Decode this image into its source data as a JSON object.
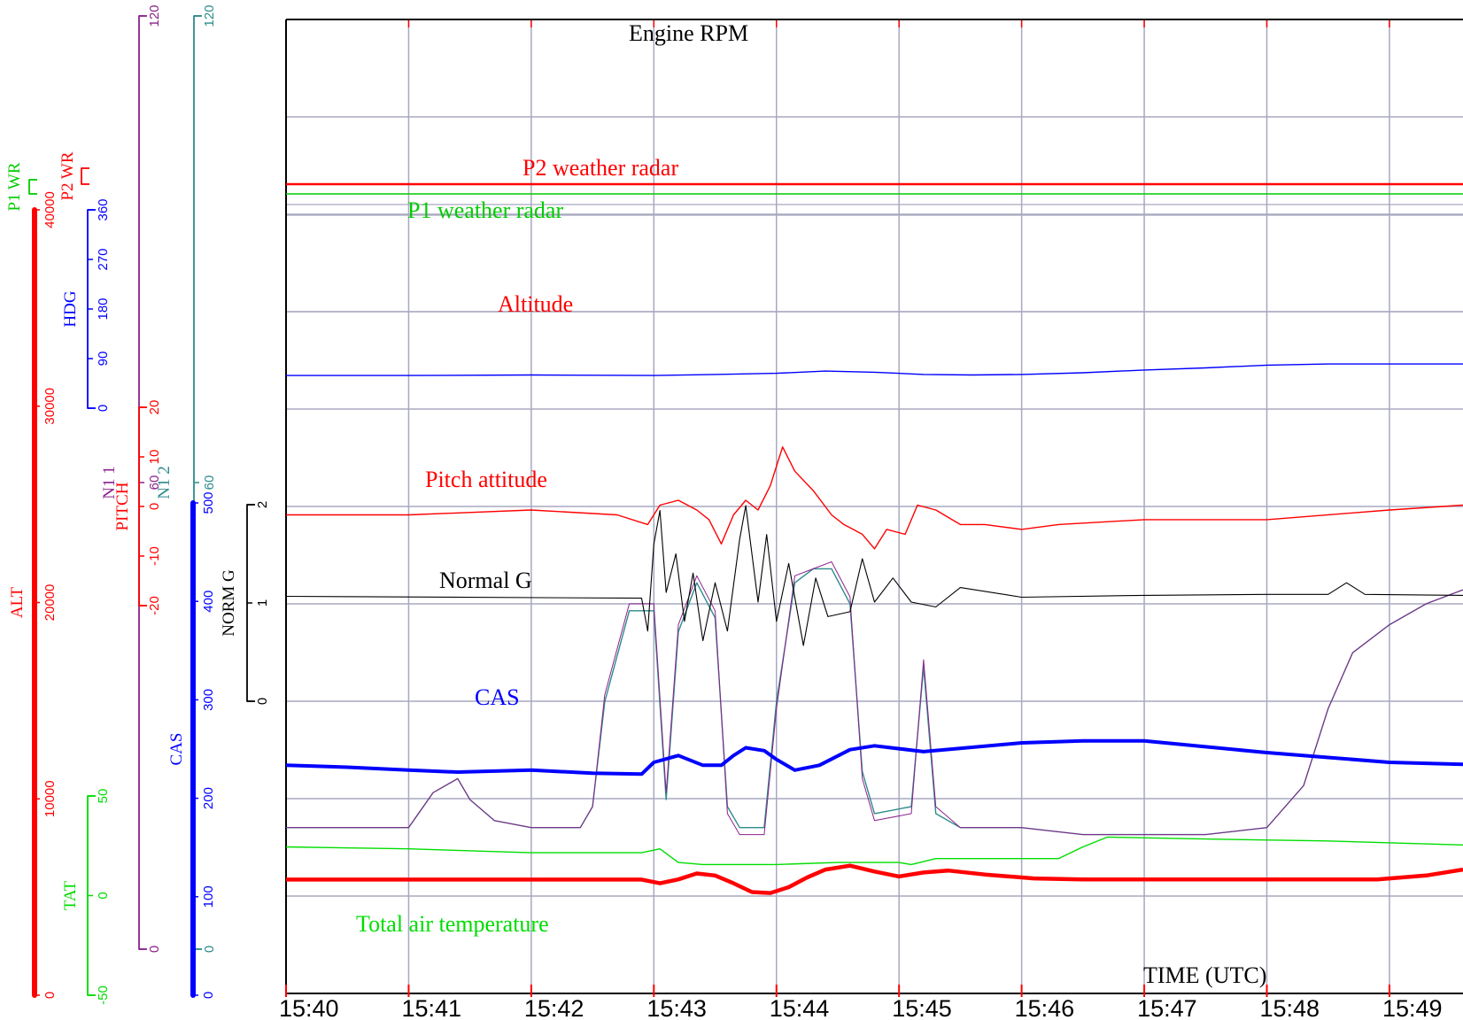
{
  "chart_data": {
    "type": "line",
    "xlabel": "TIME (UTC)",
    "x_ticks": [
      "15:40",
      "15:41",
      "15:42",
      "15:43",
      "15:44",
      "15:45",
      "15:46",
      "15:47",
      "15:48",
      "15:49"
    ],
    "xlim": [
      "15:40",
      "15:49:36"
    ],
    "grid": true,
    "series": [
      {
        "key": "n12",
        "name": "Engine RPM",
        "axis_label": "N1 2",
        "color": "#2e8b8b",
        "width": 1.4,
        "ylim": [
          0,
          120
        ],
        "y_ticks": [
          "0",
          "60",
          "120"
        ],
        "band": [
          18,
          1072,
          121,
          1069
        ],
        "points": [
          [
            0,
            103
          ],
          [
            0.5,
            103
          ],
          [
            1,
            103
          ],
          [
            1.2,
            98
          ],
          [
            1.4,
            96
          ],
          [
            1.5,
            99
          ],
          [
            1.7,
            102
          ],
          [
            2,
            103
          ],
          [
            2.4,
            103
          ],
          [
            2.5,
            100
          ],
          [
            2.6,
            85
          ],
          [
            2.8,
            72
          ],
          [
            3.0,
            72
          ],
          [
            3.1,
            99
          ],
          [
            3.2,
            75
          ],
          [
            3.35,
            68
          ],
          [
            3.5,
            73
          ],
          [
            3.6,
            100
          ],
          [
            3.7,
            103
          ],
          [
            3.9,
            103
          ],
          [
            4.0,
            85
          ],
          [
            4.15,
            68
          ],
          [
            4.3,
            66
          ],
          [
            4.45,
            66
          ],
          [
            4.6,
            71
          ],
          [
            4.7,
            95
          ],
          [
            4.8,
            101
          ],
          [
            5.1,
            100
          ],
          [
            5.2,
            80
          ],
          [
            5.3,
            101
          ],
          [
            5.5,
            103
          ],
          [
            6,
            103
          ],
          [
            6.5,
            104
          ],
          [
            7,
            104
          ],
          [
            7.5,
            104
          ],
          [
            8.0,
            103
          ],
          [
            8.3,
            97
          ],
          [
            8.5,
            86
          ],
          [
            8.7,
            78
          ],
          [
            9.0,
            74
          ],
          [
            9.3,
            71
          ],
          [
            9.6,
            69
          ]
        ]
      },
      {
        "key": "n11",
        "name": "",
        "axis_label": "N1 1",
        "color": "#8b228b",
        "width": 1.0,
        "ylim": [
          0,
          120
        ],
        "y_ticks": [
          "0",
          "60",
          "120"
        ],
        "band": [
          18,
          1072,
          121,
          1069
        ],
        "points": [
          [
            0,
            103
          ],
          [
            0.5,
            103
          ],
          [
            1,
            103
          ],
          [
            1.2,
            98
          ],
          [
            1.4,
            96
          ],
          [
            1.5,
            99
          ],
          [
            1.7,
            102
          ],
          [
            2,
            103
          ],
          [
            2.4,
            103
          ],
          [
            2.5,
            100
          ],
          [
            2.6,
            84
          ],
          [
            2.8,
            71
          ],
          [
            3.0,
            71
          ],
          [
            3.1,
            98
          ],
          [
            3.2,
            74
          ],
          [
            3.35,
            67
          ],
          [
            3.5,
            72
          ],
          [
            3.6,
            101
          ],
          [
            3.7,
            104
          ],
          [
            3.9,
            104
          ],
          [
            4.0,
            86
          ],
          [
            4.15,
            67
          ],
          [
            4.3,
            66
          ],
          [
            4.45,
            65
          ],
          [
            4.6,
            70
          ],
          [
            4.7,
            96
          ],
          [
            4.8,
            102
          ],
          [
            5.1,
            101
          ],
          [
            5.2,
            79
          ],
          [
            5.3,
            100
          ],
          [
            5.5,
            103
          ],
          [
            6,
            103
          ],
          [
            6.5,
            104
          ],
          [
            7,
            104
          ],
          [
            7.5,
            104
          ],
          [
            8.0,
            103
          ],
          [
            8.3,
            97
          ],
          [
            8.5,
            86
          ],
          [
            8.7,
            78
          ],
          [
            9.0,
            74
          ],
          [
            9.3,
            71
          ],
          [
            9.6,
            69
          ]
        ]
      },
      {
        "key": "p2wr",
        "name": "P2 weather radar",
        "axis_label": "P2 WR",
        "color": "#ff0000",
        "width": 2.4,
        "ylim": [
          0,
          1
        ],
        "y_ticks": [],
        "band": [
          190,
          208,
          196,
          208
        ],
        "points": [
          [
            0,
            1
          ],
          [
            9.6,
            1
          ]
        ]
      },
      {
        "key": "p1wr",
        "name": "P1 weather radar",
        "axis_label": "P1 WR",
        "color": "#00cc00",
        "width": 1.6,
        "ylim": [
          0,
          1
        ],
        "y_ticks": [],
        "band": [
          203,
          219,
          209,
          219
        ],
        "points": [
          [
            0,
            1
          ],
          [
            9.6,
            1
          ]
        ]
      },
      {
        "key": "hdg",
        "name": "",
        "axis_label": "HDG",
        "color": "#0000ff",
        "width": 1.4,
        "ylim": [
          0,
          360
        ],
        "y_ticks": [
          "0",
          "90",
          "180",
          "270",
          "360"
        ],
        "band": [
          237,
          461,
          236,
          458
        ],
        "points": [
          [
            0,
            305
          ],
          [
            1,
            305
          ],
          [
            2,
            304
          ],
          [
            3,
            305
          ],
          [
            3.5,
            303
          ],
          [
            4,
            301
          ],
          [
            4.4,
            297
          ],
          [
            4.8,
            299
          ],
          [
            5.2,
            303
          ],
          [
            5.6,
            304
          ],
          [
            6,
            303
          ],
          [
            6.5,
            300
          ],
          [
            7,
            295
          ],
          [
            7.5,
            291
          ],
          [
            8,
            286
          ],
          [
            8.5,
            284
          ],
          [
            9,
            284
          ],
          [
            9.6,
            284
          ]
        ]
      },
      {
        "key": "alt",
        "name": "Altitude",
        "axis_label": "ALT",
        "color": "#ff0000",
        "width": 4.5,
        "ylim": [
          0,
          40000
        ],
        "y_ticks": [
          "0",
          "10000",
          "20000",
          "30000",
          "40000"
        ],
        "band": [
          237,
          1124,
          236,
          1119
        ],
        "points": [
          [
            0,
            34310
          ],
          [
            1,
            34310
          ],
          [
            2,
            34310
          ],
          [
            2.9,
            34310
          ],
          [
            3.05,
            34500
          ],
          [
            3.2,
            34300
          ],
          [
            3.35,
            34000
          ],
          [
            3.5,
            34100
          ],
          [
            3.65,
            34500
          ],
          [
            3.8,
            34950
          ],
          [
            3.95,
            35000
          ],
          [
            4.1,
            34700
          ],
          [
            4.25,
            34200
          ],
          [
            4.4,
            33800
          ],
          [
            4.6,
            33600
          ],
          [
            4.8,
            33900
          ],
          [
            5.0,
            34150
          ],
          [
            5.2,
            33950
          ],
          [
            5.4,
            33850
          ],
          [
            5.7,
            34050
          ],
          [
            6.1,
            34250
          ],
          [
            6.5,
            34300
          ],
          [
            7,
            34300
          ],
          [
            8,
            34300
          ],
          [
            8.9,
            34300
          ],
          [
            9.3,
            34100
          ],
          [
            9.6,
            33800
          ]
        ]
      },
      {
        "key": "pitch",
        "name": "Pitch attitude",
        "axis_label": "PITCH",
        "color": "#ff0000",
        "width": 1.4,
        "ylim": [
          -20,
          20
        ],
        "y_ticks": [
          "-20",
          "-10",
          "0",
          "10",
          "20"
        ],
        "band": [
          460,
          684,
          461,
          680
        ],
        "points": [
          [
            0,
            2
          ],
          [
            1,
            2
          ],
          [
            2,
            1
          ],
          [
            2.7,
            2
          ],
          [
            2.95,
            4
          ],
          [
            3.05,
            0
          ],
          [
            3.2,
            -1
          ],
          [
            3.35,
            1
          ],
          [
            3.45,
            3
          ],
          [
            3.55,
            8
          ],
          [
            3.65,
            2
          ],
          [
            3.75,
            -1
          ],
          [
            3.85,
            1
          ],
          [
            3.95,
            -4
          ],
          [
            4.05,
            -12
          ],
          [
            4.15,
            -7
          ],
          [
            4.3,
            -3
          ],
          [
            4.45,
            2
          ],
          [
            4.55,
            4
          ],
          [
            4.7,
            6
          ],
          [
            4.8,
            9
          ],
          [
            4.9,
            5
          ],
          [
            5.05,
            6
          ],
          [
            5.15,
            0
          ],
          [
            5.3,
            1
          ],
          [
            5.5,
            4
          ],
          [
            5.7,
            4
          ],
          [
            6.0,
            5
          ],
          [
            6.3,
            4
          ],
          [
            7,
            3
          ],
          [
            8,
            3
          ],
          [
            9,
            1
          ],
          [
            9.6,
            0
          ]
        ]
      },
      {
        "key": "normg",
        "name": "Normal G",
        "axis_label": "NORM G",
        "color": "#000000",
        "width": 1.1,
        "ylim": [
          0,
          2
        ],
        "y_ticks": [
          "0",
          "1",
          "2"
        ],
        "band": [
          570,
          792,
          571,
          789
        ],
        "points": [
          [
            0,
            0.94
          ],
          [
            2.9,
            0.96
          ],
          [
            2.95,
            1.3
          ],
          [
            3.0,
            0.4
          ],
          [
            3.05,
            0.05
          ],
          [
            3.1,
            0.9
          ],
          [
            3.18,
            0.5
          ],
          [
            3.25,
            1.2
          ],
          [
            3.32,
            0.7
          ],
          [
            3.4,
            1.4
          ],
          [
            3.5,
            0.8
          ],
          [
            3.6,
            1.3
          ],
          [
            3.7,
            0.35
          ],
          [
            3.75,
            0.0
          ],
          [
            3.85,
            1.0
          ],
          [
            3.92,
            0.3
          ],
          [
            4.0,
            1.2
          ],
          [
            4.1,
            0.6
          ],
          [
            4.22,
            1.45
          ],
          [
            4.32,
            0.75
          ],
          [
            4.42,
            1.15
          ],
          [
            4.6,
            1.1
          ],
          [
            4.7,
            0.55
          ],
          [
            4.8,
            1.0
          ],
          [
            4.95,
            0.75
          ],
          [
            5.1,
            1.0
          ],
          [
            5.3,
            1.05
          ],
          [
            5.5,
            0.85
          ],
          [
            6.0,
            0.95
          ],
          [
            7,
            0.93
          ],
          [
            8,
            0.92
          ],
          [
            8.5,
            0.92
          ],
          [
            8.65,
            0.8
          ],
          [
            8.8,
            0.92
          ],
          [
            9.6,
            0.93
          ]
        ]
      },
      {
        "key": "cas",
        "name": "CAS",
        "axis_label": "CAS",
        "color": "#0000ff",
        "width": 4.0,
        "ylim": [
          0,
          500
        ],
        "y_ticks": [
          "0",
          "100",
          "200",
          "300",
          "400",
          "500"
        ],
        "band": [
          568,
          1124,
          569,
          1120
        ],
        "points": [
          [
            0,
            268
          ],
          [
            0.5,
            270
          ],
          [
            1,
            273
          ],
          [
            1.4,
            275
          ],
          [
            2,
            273
          ],
          [
            2.5,
            276
          ],
          [
            2.9,
            277
          ],
          [
            3.0,
            265
          ],
          [
            3.2,
            258
          ],
          [
            3.4,
            268
          ],
          [
            3.55,
            268
          ],
          [
            3.65,
            258
          ],
          [
            3.75,
            250
          ],
          [
            3.9,
            253
          ],
          [
            4.0,
            262
          ],
          [
            4.15,
            273
          ],
          [
            4.35,
            268
          ],
          [
            4.6,
            252
          ],
          [
            4.8,
            248
          ],
          [
            5.2,
            254
          ],
          [
            6,
            245
          ],
          [
            6.5,
            243
          ],
          [
            7,
            243
          ],
          [
            7.5,
            249
          ],
          [
            8,
            255
          ],
          [
            8.5,
            260
          ],
          [
            9,
            265
          ],
          [
            9.6,
            267
          ]
        ]
      },
      {
        "key": "tat",
        "name": "Total air temperature",
        "axis_label": "TAT",
        "color": "#00dd00",
        "width": 1.4,
        "ylim": [
          -50,
          50
        ],
        "y_ticks": [
          "-50",
          "0",
          "50"
        ],
        "band": [
          899,
          1124,
          899,
          1120
        ],
        "points": [
          [
            0,
            -24
          ],
          [
            1,
            -23
          ],
          [
            2,
            -21
          ],
          [
            2.9,
            -21
          ],
          [
            3.05,
            -23
          ],
          [
            3.2,
            -16
          ],
          [
            3.4,
            -15
          ],
          [
            4.0,
            -15
          ],
          [
            4.5,
            -16
          ],
          [
            5.0,
            -16
          ],
          [
            5.1,
            -15
          ],
          [
            5.3,
            -18
          ],
          [
            6.3,
            -18
          ],
          [
            6.5,
            -24
          ],
          [
            6.7,
            -29
          ],
          [
            7.5,
            -28
          ],
          [
            8.5,
            -27
          ],
          [
            9.6,
            -25
          ]
        ]
      }
    ]
  }
}
